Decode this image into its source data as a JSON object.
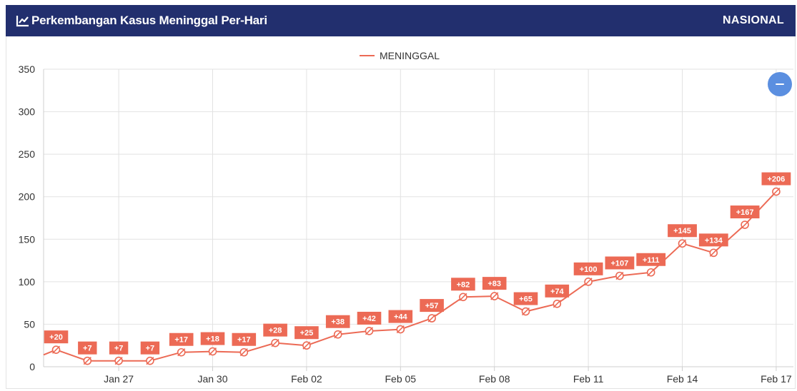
{
  "header": {
    "title": "Perkembangan Kasus Meninggal Per-Hari",
    "scope": "NASIONAL",
    "icon": "line-chart-icon"
  },
  "controls": {
    "collapse_icon": "minus-icon",
    "collapse_color": "#5b8fe0"
  },
  "colors": {
    "header_bg": "#222f6e",
    "series": "#ec6a55",
    "grid": "#e2e2e2"
  },
  "chart_data": {
    "type": "line",
    "legend": [
      "MENINGGAL"
    ],
    "legend_position": "top-center",
    "grid": true,
    "ylim": [
      0,
      350
    ],
    "yticks": [
      0,
      50,
      100,
      150,
      200,
      250,
      300,
      350
    ],
    "x_tick_labels": [
      "Jan 27",
      "Jan 30",
      "Feb 02",
      "Feb 05",
      "Feb 08",
      "Feb 11",
      "Feb 14",
      "Feb 17"
    ],
    "x_tick_dates": [
      "2021-01-27",
      "2021-01-30",
      "2021-02-02",
      "2021-02-05",
      "2021-02-08",
      "2021-02-11",
      "2021-02-14",
      "2021-02-17"
    ],
    "x": [
      "2021-01-25",
      "2021-01-26",
      "2021-01-27",
      "2021-01-28",
      "2021-01-29",
      "2021-01-30",
      "2021-01-31",
      "2021-02-01",
      "2021-02-02",
      "2021-02-03",
      "2021-02-04",
      "2021-02-05",
      "2021-02-06",
      "2021-02-07",
      "2021-02-08",
      "2021-02-09",
      "2021-02-10",
      "2021-02-11",
      "2021-02-12",
      "2021-02-13",
      "2021-02-14",
      "2021-02-15",
      "2021-02-16",
      "2021-02-17"
    ],
    "series": [
      {
        "name": "MENINGGAL",
        "color": "#ec6a55",
        "values": [
          20,
          7,
          7,
          7,
          17,
          18,
          17,
          28,
          25,
          38,
          42,
          44,
          57,
          82,
          83,
          65,
          74,
          100,
          107,
          111,
          145,
          134,
          167,
          206
        ],
        "labels": [
          "+20",
          "+7",
          "+7",
          "+7",
          "+17",
          "+18",
          "+17",
          "+28",
          "+25",
          "+38",
          "+42",
          "+44",
          "+57",
          "+82",
          "+83",
          "+65",
          "+74",
          "+100",
          "+107",
          "+111",
          "+145",
          "+134",
          "+167",
          "+206"
        ]
      }
    ],
    "line_start_value": 14
  }
}
